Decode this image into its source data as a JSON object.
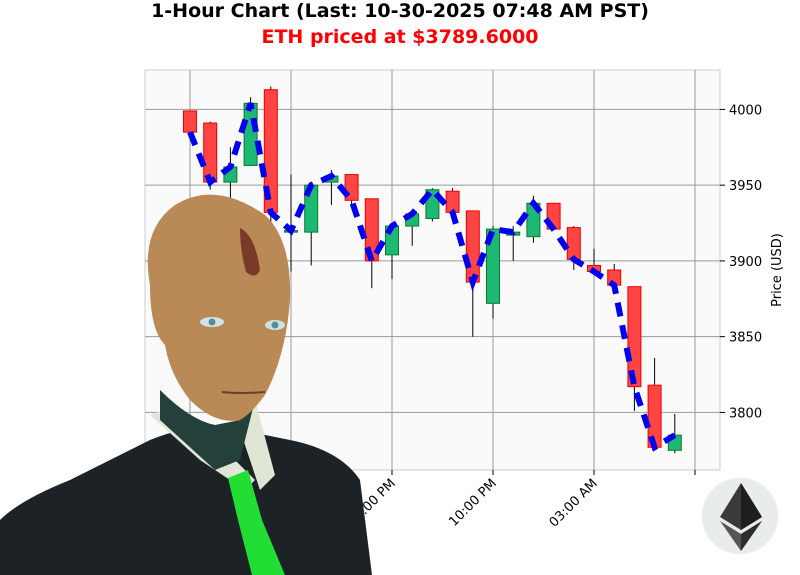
{
  "header": {
    "title": "1-Hour Chart (Last: 10-30-2025 07:48 AM PST)",
    "subtitle": "ETH priced at $3789.6000"
  },
  "colors": {
    "up": "#1db874",
    "up_edge": "#0a7a2a",
    "down": "#ff4444",
    "down_edge": "#ee0000",
    "trend": "#0000ee",
    "subtitle": "#ff0000",
    "plot_bg": "#fafafa",
    "grid": "#999999"
  },
  "logo": {
    "name": "ethereum-logo"
  },
  "chart_data": {
    "type": "candlestick",
    "title": "1-Hour Chart (Last: 10-30-2025 07:48 AM PST)",
    "ylabel": "Price (USD)",
    "ylim": [
      3762,
      4026
    ],
    "yticks": [
      3800,
      3850,
      3900,
      3950,
      4000
    ],
    "xticks": [
      "05:00 PM",
      "10:00 PM",
      "03:00 AM"
    ],
    "grid": true,
    "overlay": "dashed trend line through closes",
    "candles": [
      {
        "t": "07:00 AM",
        "o": 3999,
        "h": 3999,
        "l": 3985,
        "c": 3985
      },
      {
        "t": "08:00 AM",
        "o": 3991,
        "h": 3992,
        "l": 3947,
        "c": 3952
      },
      {
        "t": "09:00 AM",
        "o": 3952,
        "h": 3975,
        "l": 3932,
        "c": 3962
      },
      {
        "t": "10:00 AM",
        "o": 3963,
        "h": 4008,
        "l": 3963,
        "c": 4004
      },
      {
        "t": "11:00 AM",
        "o": 4013,
        "h": 4015,
        "l": 3908,
        "c": 3932
      },
      {
        "t": "12:00 PM",
        "o": 3919,
        "h": 3957,
        "l": 3893,
        "c": 3920
      },
      {
        "t": "01:00 PM",
        "o": 3919,
        "h": 3952,
        "l": 3897,
        "c": 3950
      },
      {
        "t": "02:00 PM",
        "o": 3952,
        "h": 3960,
        "l": 3937,
        "c": 3956
      },
      {
        "t": "03:00 PM",
        "o": 3957,
        "h": 3957,
        "l": 3936,
        "c": 3940
      },
      {
        "t": "04:00 PM",
        "o": 3941,
        "h": 3941,
        "l": 3882,
        "c": 3900
      },
      {
        "t": "05:00 PM",
        "o": 3904,
        "h": 3925,
        "l": 3888,
        "c": 3923
      },
      {
        "t": "06:00 PM",
        "o": 3923,
        "h": 3932,
        "l": 3910,
        "c": 3931
      },
      {
        "t": "07:00 PM",
        "o": 3928,
        "h": 3948,
        "l": 3926,
        "c": 3947
      },
      {
        "t": "08:00 PM",
        "o": 3946,
        "h": 3948,
        "l": 3929,
        "c": 3932
      },
      {
        "t": "09:00 PM",
        "o": 3933,
        "h": 3933,
        "l": 3850,
        "c": 3886
      },
      {
        "t": "10:00 PM",
        "o": 3872,
        "h": 3923,
        "l": 3862,
        "c": 3921
      },
      {
        "t": "11:00 PM",
        "o": 3917,
        "h": 3923,
        "l": 3900,
        "c": 3919
      },
      {
        "t": "12:00 AM",
        "o": 3916,
        "h": 3943,
        "l": 3912,
        "c": 3938
      },
      {
        "t": "01:00 AM",
        "o": 3938,
        "h": 3938,
        "l": 3921,
        "c": 3921
      },
      {
        "t": "02:00 AM",
        "o": 3922,
        "h": 3923,
        "l": 3894,
        "c": 3901
      },
      {
        "t": "03:00 AM",
        "o": 3897,
        "h": 3908,
        "l": 3892,
        "c": 3893
      },
      {
        "t": "04:00 AM",
        "o": 3894,
        "h": 3898,
        "l": 3884,
        "c": 3884
      },
      {
        "t": "05:00 AM",
        "o": 3883,
        "h": 3883,
        "l": 3801,
        "c": 3817
      },
      {
        "t": "06:00 AM",
        "o": 3818,
        "h": 3836,
        "l": 3777,
        "c": 3777
      },
      {
        "t": "07:00 AM",
        "o": 3775,
        "h": 3799,
        "l": 3773,
        "c": 3785
      }
    ]
  }
}
